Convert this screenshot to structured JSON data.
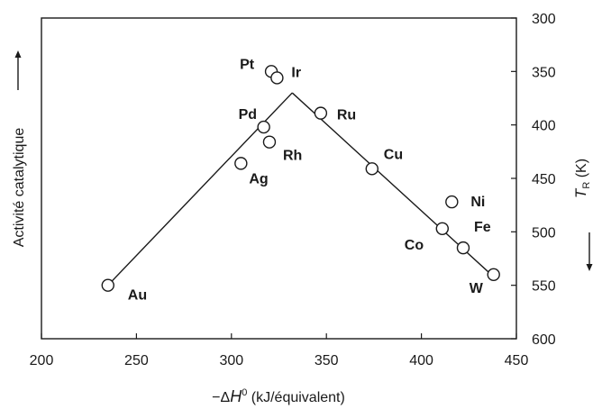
{
  "chart_data": {
    "type": "scatter",
    "xlabel": "−ΔH⁰ (kJ/équivalent)",
    "xlabel_parts": {
      "prefix": "−Δ",
      "symbol": "H",
      "superscript": "0",
      "suffix": " (kJ/équivalent)"
    },
    "ylabel_left": "Activité catalytique",
    "ylabel_right": "T_R (K)",
    "ylabel_right_parts": {
      "symbol": "T",
      "subscript": "R",
      "unit": " (K)"
    },
    "xlim": [
      200,
      450
    ],
    "ylim_right": [
      300,
      600
    ],
    "y_right_inverted": true,
    "x_ticks": [
      200,
      250,
      300,
      350,
      400,
      450
    ],
    "y_right_ticks": [
      300,
      350,
      400,
      450,
      500,
      550,
      600
    ],
    "points": [
      {
        "name": "Au",
        "x": 235,
        "y": 550
      },
      {
        "name": "Ag",
        "x": 305,
        "y": 436
      },
      {
        "name": "Pd",
        "x": 317,
        "y": 402
      },
      {
        "name": "Rh",
        "x": 320,
        "y": 416
      },
      {
        "name": "Pt",
        "x": 321,
        "y": 350
      },
      {
        "name": "Ir",
        "x": 324,
        "y": 356
      },
      {
        "name": "Ru",
        "x": 347,
        "y": 389
      },
      {
        "name": "Cu",
        "x": 374,
        "y": 441
      },
      {
        "name": "Ni",
        "x": 416,
        "y": 472
      },
      {
        "name": "Co",
        "x": 411,
        "y": 497
      },
      {
        "name": "Fe",
        "x": 422,
        "y": 515
      },
      {
        "name": "W",
        "x": 438,
        "y": 540
      }
    ],
    "trend_lines": [
      {
        "from": {
          "x": 235,
          "y": 550
        },
        "to": {
          "x": 332,
          "y": 370
        }
      },
      {
        "from": {
          "x": 332,
          "y": 370
        },
        "to": {
          "x": 438,
          "y": 542
        }
      }
    ],
    "grid": false
  },
  "colors": {
    "ink": "#1a1a1a",
    "background": "#ffffff"
  }
}
